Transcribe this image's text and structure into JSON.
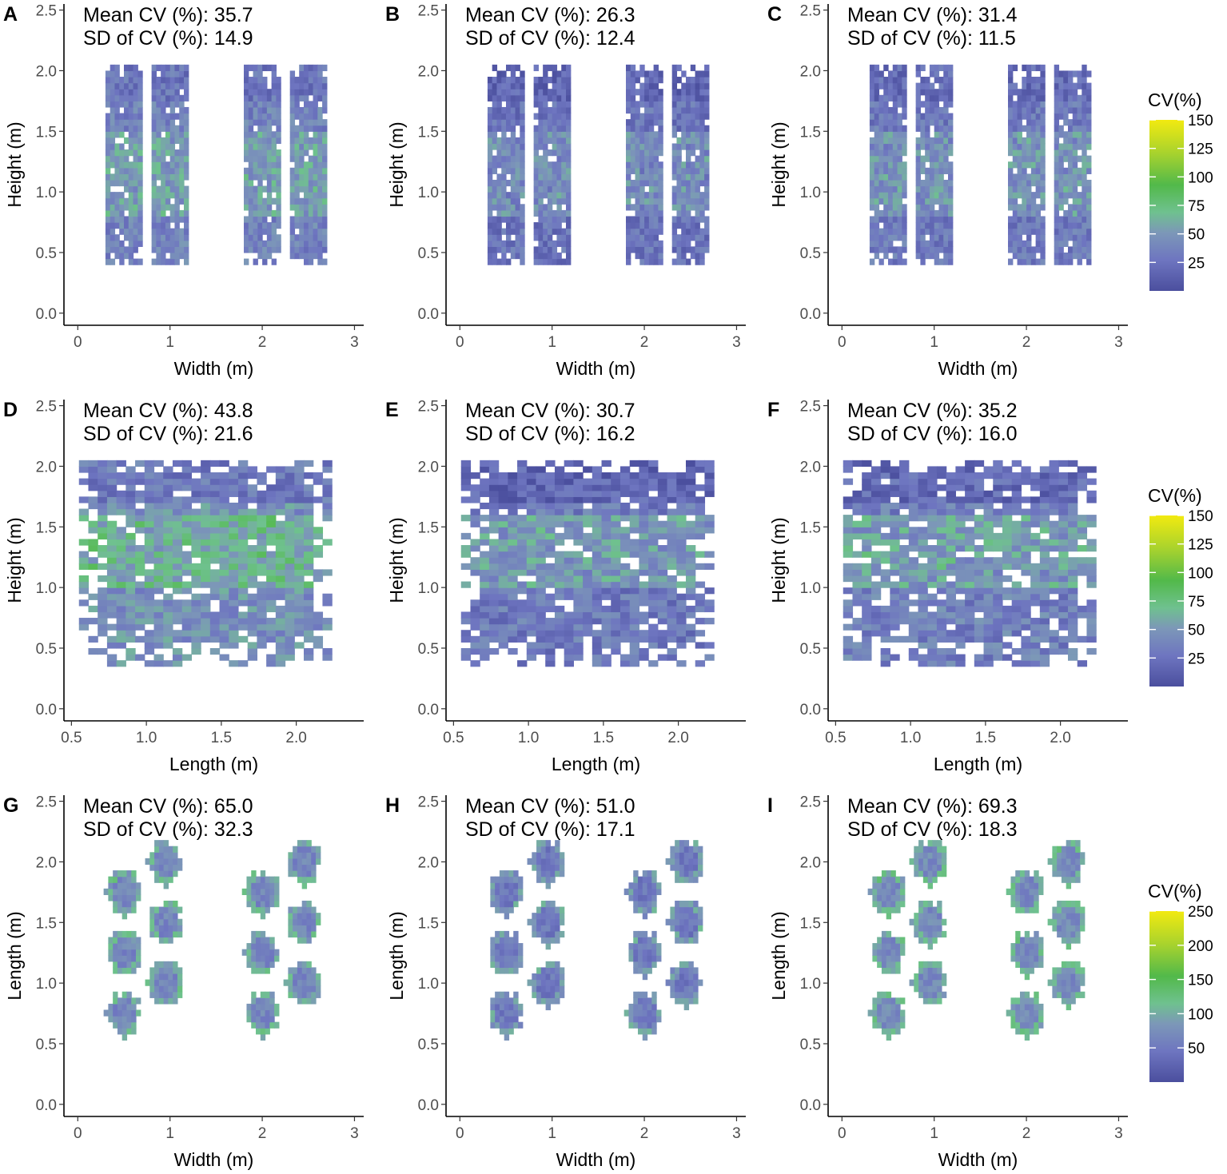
{
  "chart_data": [
    {
      "panel": "A",
      "type": "heatmap",
      "shape": "columns",
      "level": 0.24,
      "mean_label": "Mean CV (%): 35.7",
      "sd_label": "SD of CV (%): 14.9",
      "xlabel": "Width (m)",
      "ylabel": "Height (m)",
      "xlim": [
        -0.15,
        3.1
      ],
      "ylim": [
        -0.1,
        2.55
      ],
      "xticks": [
        0,
        1,
        2,
        3
      ],
      "xtick_labels": [
        "0",
        "1",
        "2",
        "3"
      ],
      "yticks": [
        0,
        0.5,
        1,
        1.5,
        2,
        2.5
      ],
      "ytick_labels": [
        "0.0",
        "0.5",
        "1.0",
        "1.5",
        "2.0",
        "2.5"
      ]
    },
    {
      "panel": "B",
      "type": "heatmap",
      "shape": "columns",
      "level": 0.17,
      "mean_label": "Mean CV (%): 26.3",
      "sd_label": "SD of CV (%): 12.4",
      "xlabel": "Width (m)",
      "ylabel": "Height (m)",
      "xlim": [
        -0.15,
        3.1
      ],
      "ylim": [
        -0.1,
        2.55
      ],
      "xticks": [
        0,
        1,
        2,
        3
      ],
      "xtick_labels": [
        "0",
        "1",
        "2",
        "3"
      ],
      "yticks": [
        0,
        0.5,
        1,
        1.5,
        2,
        2.5
      ],
      "ytick_labels": [
        "0.0",
        "0.5",
        "1.0",
        "1.5",
        "2.0",
        "2.5"
      ]
    },
    {
      "panel": "C",
      "type": "heatmap",
      "shape": "columns",
      "level": 0.2,
      "mean_label": "Mean CV (%): 31.4",
      "sd_label": "SD of CV (%): 11.5",
      "xlabel": "Width (m)",
      "ylabel": "Height (m)",
      "xlim": [
        -0.15,
        3.1
      ],
      "ylim": [
        -0.1,
        2.55
      ],
      "xticks": [
        0,
        1,
        2,
        3
      ],
      "xtick_labels": [
        "0",
        "1",
        "2",
        "3"
      ],
      "yticks": [
        0,
        0.5,
        1,
        1.5,
        2,
        2.5
      ],
      "ytick_labels": [
        "0.0",
        "0.5",
        "1.0",
        "1.5",
        "2.0",
        "2.5"
      ]
    },
    {
      "panel": "D",
      "type": "heatmap",
      "shape": "block",
      "level": 0.3,
      "mean_label": "Mean CV (%): 43.8",
      "sd_label": "SD of CV (%): 21.6",
      "xlabel": "Length (m)",
      "ylabel": "Height (m)",
      "xlim": [
        0.45,
        2.45
      ],
      "ylim": [
        -0.1,
        2.55
      ],
      "xticks": [
        0.5,
        1,
        1.5,
        2
      ],
      "xtick_labels": [
        "0.5",
        "1.0",
        "1.5",
        "2.0"
      ],
      "yticks": [
        0,
        0.5,
        1,
        1.5,
        2,
        2.5
      ],
      "ytick_labels": [
        "0.0",
        "0.5",
        "1.0",
        "1.5",
        "2.0",
        "2.5"
      ]
    },
    {
      "panel": "E",
      "type": "heatmap",
      "shape": "block",
      "level": 0.2,
      "mean_label": "Mean CV (%): 30.7",
      "sd_label": "SD of CV (%): 16.2",
      "xlabel": "Length (m)",
      "ylabel": "Height (m)",
      "xlim": [
        0.45,
        2.45
      ],
      "ylim": [
        -0.1,
        2.55
      ],
      "xticks": [
        0.5,
        1,
        1.5,
        2
      ],
      "xtick_labels": [
        "0.5",
        "1.0",
        "1.5",
        "2.0"
      ],
      "yticks": [
        0,
        0.5,
        1,
        1.5,
        2,
        2.5
      ],
      "ytick_labels": [
        "0.0",
        "0.5",
        "1.0",
        "1.5",
        "2.0",
        "2.5"
      ]
    },
    {
      "panel": "F",
      "type": "heatmap",
      "shape": "block",
      "level": 0.23,
      "mean_label": "Mean CV (%): 35.2",
      "sd_label": "SD of CV (%): 16.0",
      "xlabel": "Length (m)",
      "ylabel": "Height (m)",
      "xlim": [
        0.45,
        2.45
      ],
      "ylim": [
        -0.1,
        2.55
      ],
      "xticks": [
        0.5,
        1,
        1.5,
        2
      ],
      "xtick_labels": [
        "0.5",
        "1.0",
        "1.5",
        "2.0"
      ],
      "yticks": [
        0,
        0.5,
        1,
        1.5,
        2,
        2.5
      ],
      "ytick_labels": [
        "0.0",
        "0.5",
        "1.0",
        "1.5",
        "2.0",
        "2.5"
      ]
    },
    {
      "panel": "G",
      "type": "heatmap",
      "shape": "circles",
      "level": 0.26,
      "mean_label": "Mean CV (%): 65.0",
      "sd_label": "SD of CV (%): 32.3",
      "xlabel": "Width (m)",
      "ylabel": "Length (m)",
      "xlim": [
        -0.15,
        3.1
      ],
      "ylim": [
        -0.1,
        2.55
      ],
      "xticks": [
        0,
        1,
        2,
        3
      ],
      "xtick_labels": [
        "0",
        "1",
        "2",
        "3"
      ],
      "yticks": [
        0,
        0.5,
        1,
        1.5,
        2,
        2.5
      ],
      "ytick_labels": [
        "0.0",
        "0.5",
        "1.0",
        "1.5",
        "2.0",
        "2.5"
      ]
    },
    {
      "panel": "H",
      "type": "heatmap",
      "shape": "circles",
      "level": 0.2,
      "mean_label": "Mean CV (%): 51.0",
      "sd_label": "SD of CV (%): 17.1",
      "xlabel": "Width (m)",
      "ylabel": "Length (m)",
      "xlim": [
        -0.15,
        3.1
      ],
      "ylim": [
        -0.1,
        2.55
      ],
      "xticks": [
        0,
        1,
        2,
        3
      ],
      "xtick_labels": [
        "0",
        "1",
        "2",
        "3"
      ],
      "yticks": [
        0,
        0.5,
        1,
        1.5,
        2,
        2.5
      ],
      "ytick_labels": [
        "0.0",
        "0.5",
        "1.0",
        "1.5",
        "2.0",
        "2.5"
      ]
    },
    {
      "panel": "I",
      "type": "heatmap",
      "shape": "circles",
      "level": 0.28,
      "mean_label": "Mean CV (%): 69.3",
      "sd_label": "SD of CV (%): 18.3",
      "xlabel": "Width (m)",
      "ylabel": "Length (m)",
      "xlim": [
        -0.15,
        3.1
      ],
      "ylim": [
        -0.1,
        2.55
      ],
      "xticks": [
        0,
        1,
        2,
        3
      ],
      "xtick_labels": [
        "0",
        "1",
        "2",
        "3"
      ],
      "yticks": [
        0,
        0.5,
        1,
        1.5,
        2,
        2.5
      ],
      "ytick_labels": [
        "0.0",
        "0.5",
        "1.0",
        "1.5",
        "2.0",
        "2.5"
      ]
    }
  ],
  "legends": [
    {
      "title": "CV(%)",
      "range": [
        0,
        150
      ],
      "ticks": [
        25,
        50,
        75,
        100,
        125,
        150
      ],
      "tick_labels": [
        "25",
        "50",
        "75",
        "100",
        "125",
        "150"
      ]
    },
    {
      "title": "CV(%)",
      "range": [
        0,
        150
      ],
      "ticks": [
        25,
        50,
        75,
        100,
        125,
        150
      ],
      "tick_labels": [
        "25",
        "50",
        "75",
        "100",
        "125",
        "150"
      ]
    },
    {
      "title": "CV(%)",
      "range": [
        0,
        250
      ],
      "ticks": [
        50,
        100,
        150,
        200,
        250
      ],
      "tick_labels": [
        "50",
        "100",
        "150",
        "200",
        "250"
      ]
    }
  ],
  "colors": {
    "low": "#4b4f9e",
    "mid_low": "#6e75c0",
    "mid": "#6fc18f",
    "mid_high": "#52b94a",
    "high": "#f2ea10"
  }
}
